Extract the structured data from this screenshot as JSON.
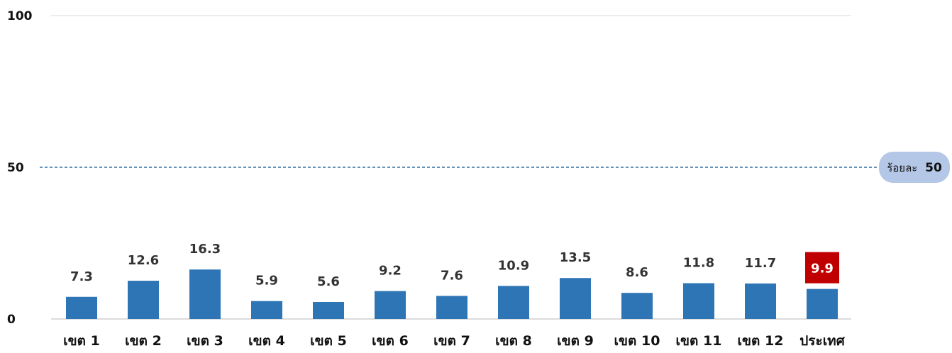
{
  "chart_data": {
    "type": "bar",
    "categories": [
      "เขต 1",
      "เขต 2",
      "เขต 3",
      "เขต 4",
      "เขต 5",
      "เขต 6",
      "เขต 7",
      "เขต 8",
      "เขต 9",
      "เขต 10",
      "เขต 11",
      "เขต 12",
      "ประเทศ"
    ],
    "values": [
      7.3,
      12.6,
      16.3,
      5.9,
      5.6,
      9.2,
      7.6,
      10.9,
      13.5,
      8.6,
      11.8,
      11.7,
      9.9
    ],
    "value_labels": [
      "7.3",
      "12.6",
      "16.3",
      "5.9",
      "5.6",
      "9.2",
      "7.6",
      "10.9",
      "13.5",
      "8.6",
      "11.8",
      "11.7",
      "9.9"
    ],
    "highlight_index": 12,
    "ylim": [
      0,
      100
    ],
    "yticks": [
      "0",
      "50",
      "100"
    ],
    "reference_line": {
      "value": 50,
      "label_prefix": "ร้อยละ",
      "label_value": "50"
    },
    "grid": true,
    "title": "",
    "xlabel": "",
    "ylabel": ""
  },
  "colors": {
    "bar": "#2e75b6",
    "highlight_label_bg": "#c00000",
    "reference_line": "#2e6da4",
    "reference_badge": "#b4c7e7",
    "gridline": "#d9d9d9",
    "axis": "#d0d0d0"
  }
}
